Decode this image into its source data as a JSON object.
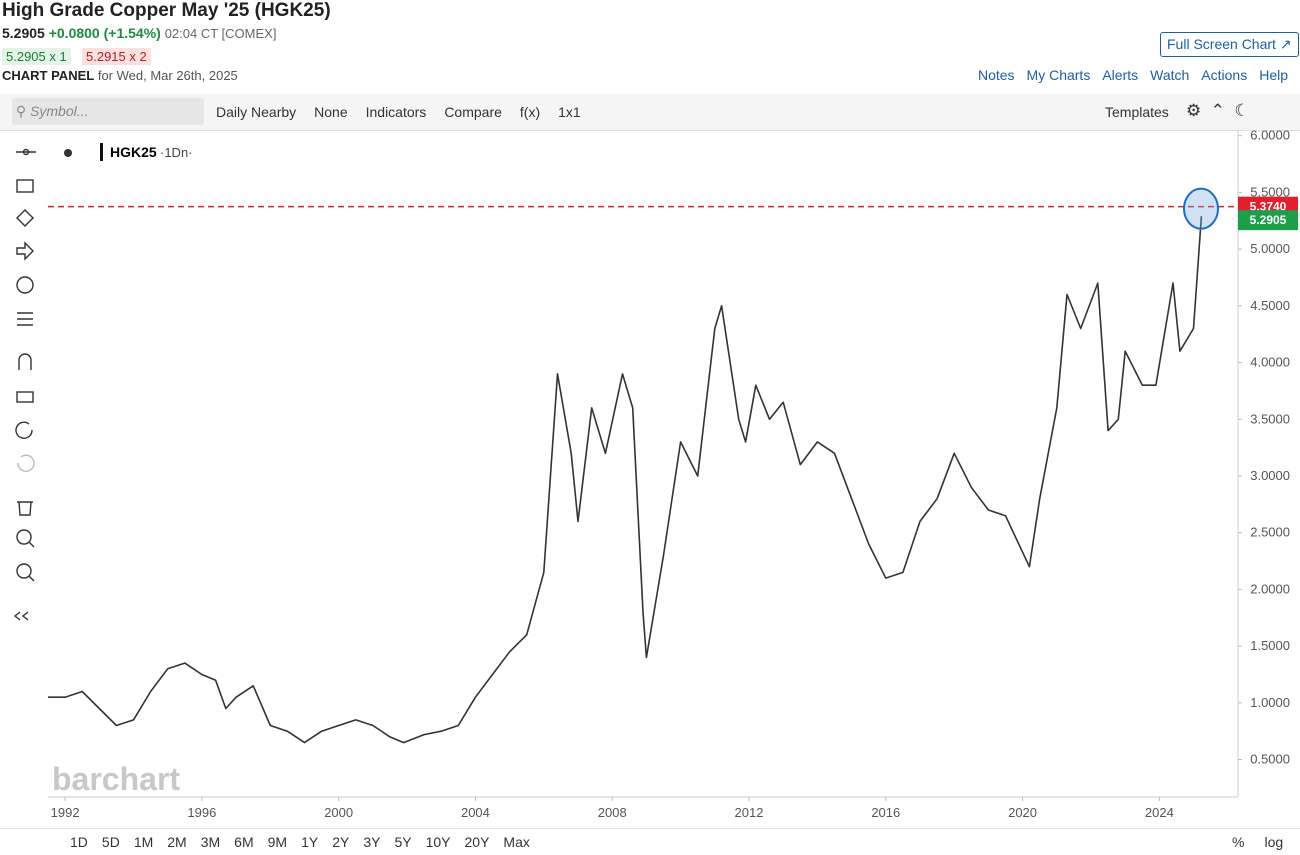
{
  "header": {
    "title": "High Grade Copper May '25 (HGK25)",
    "last": "5.2905",
    "change": "+0.0800 (+1.54%)",
    "time": "02:04 CT [COMEX]",
    "bid": "5.2905 x 1",
    "ask": "5.2915 x 2",
    "panel_label": "CHART PANEL",
    "panel_date": "for Wed, Mar 26th, 2025",
    "full_screen": "Full Screen Chart",
    "links": [
      "Notes",
      "My Charts",
      "Alerts",
      "Watch",
      "Actions",
      "Help"
    ]
  },
  "toolbar": {
    "symbol_placeholder": "Symbol...",
    "items": [
      "Daily Nearby",
      "None",
      "Indicators",
      "Compare",
      "f(x)",
      "1x1"
    ],
    "templates": "Templates"
  },
  "legend_interval": "·1Dn·",
  "watermark": "barchart",
  "timeframes": [
    "1D",
    "5D",
    "1M",
    "2M",
    "3M",
    "6M",
    "9M",
    "1Y",
    "2Y",
    "3Y",
    "5Y",
    "10Y",
    "20Y",
    "Max"
  ],
  "scale_options": [
    "%",
    "log"
  ],
  "chart_data": {
    "type": "line",
    "x": [
      1991.5,
      1992.0,
      1992.5,
      1993.0,
      1993.5,
      1994.0,
      1994.5,
      1995.0,
      1995.5,
      1996.0,
      1996.4,
      1996.7,
      1997.0,
      1997.5,
      1998.0,
      1998.5,
      1999.0,
      1999.5,
      2000.0,
      2000.5,
      2001.0,
      2001.5,
      2001.9,
      2002.5,
      2003.0,
      2003.5,
      2004.0,
      2004.5,
      2005.0,
      2005.5,
      2006.0,
      2006.4,
      2006.8,
      2007.0,
      2007.4,
      2007.8,
      2008.3,
      2008.6,
      2008.9,
      2009.0,
      2009.5,
      2010.0,
      2010.5,
      2011.0,
      2011.2,
      2011.7,
      2011.9,
      2012.2,
      2012.6,
      2013.0,
      2013.5,
      2014.0,
      2014.5,
      2015.0,
      2015.5,
      2016.0,
      2016.5,
      2017.0,
      2017.5,
      2018.0,
      2018.5,
      2019.0,
      2019.5,
      2020.2,
      2020.5,
      2021.0,
      2021.3,
      2021.7,
      2022.2,
      2022.5,
      2022.8,
      2023.0,
      2023.5,
      2023.9,
      2024.4,
      2024.6,
      2025.0,
      2025.23
    ],
    "series": [
      {
        "name": "HGK25",
        "color": "#333333",
        "values": [
          1.05,
          1.05,
          1.1,
          0.95,
          0.8,
          0.85,
          1.1,
          1.3,
          1.35,
          1.25,
          1.2,
          0.95,
          1.05,
          1.15,
          0.8,
          0.75,
          0.65,
          0.75,
          0.8,
          0.85,
          0.8,
          0.7,
          0.65,
          0.72,
          0.75,
          0.8,
          1.05,
          1.25,
          1.45,
          1.6,
          2.15,
          3.9,
          3.2,
          2.6,
          3.6,
          3.2,
          3.9,
          3.6,
          1.8,
          1.4,
          2.3,
          3.3,
          3.0,
          4.3,
          4.5,
          3.5,
          3.3,
          3.8,
          3.5,
          3.65,
          3.1,
          3.3,
          3.2,
          2.8,
          2.4,
          2.1,
          2.15,
          2.6,
          2.8,
          3.2,
          2.9,
          2.7,
          2.65,
          2.2,
          2.8,
          3.6,
          4.6,
          4.3,
          4.7,
          3.4,
          3.5,
          4.1,
          3.8,
          3.8,
          4.7,
          4.1,
          4.3,
          5.29
        ]
      }
    ],
    "xlim": [
      1991.5,
      2026.3
    ],
    "xticks": [
      1992,
      1996,
      2000,
      2004,
      2008,
      2012,
      2016,
      2020,
      2024
    ],
    "ylim": [
      0.17,
      6.05
    ],
    "yticks": [
      {
        "value": 0.5,
        "label": "0.5000"
      },
      {
        "value": 1.0,
        "label": "1.0000"
      },
      {
        "value": 1.5,
        "label": "1.5000"
      },
      {
        "value": 2.0,
        "label": "2.0000"
      },
      {
        "value": 2.5,
        "label": "2.5000"
      },
      {
        "value": 3.0,
        "label": "3.0000"
      },
      {
        "value": 3.5,
        "label": "3.5000"
      },
      {
        "value": 4.0,
        "label": "4.0000"
      },
      {
        "value": 4.5,
        "label": "4.5000"
      },
      {
        "value": 5.0,
        "label": "5.0000"
      },
      {
        "value": 5.5,
        "label": "5.5000"
      },
      {
        "value": 6.0,
        "label": "6.0000"
      }
    ],
    "reference_line": {
      "value": 5.374,
      "label": "5.3740",
      "color": "#e0202a"
    },
    "last_value": {
      "value": 5.2905,
      "label": "5.2905",
      "color": "#1e9e4a"
    },
    "grid": false
  }
}
